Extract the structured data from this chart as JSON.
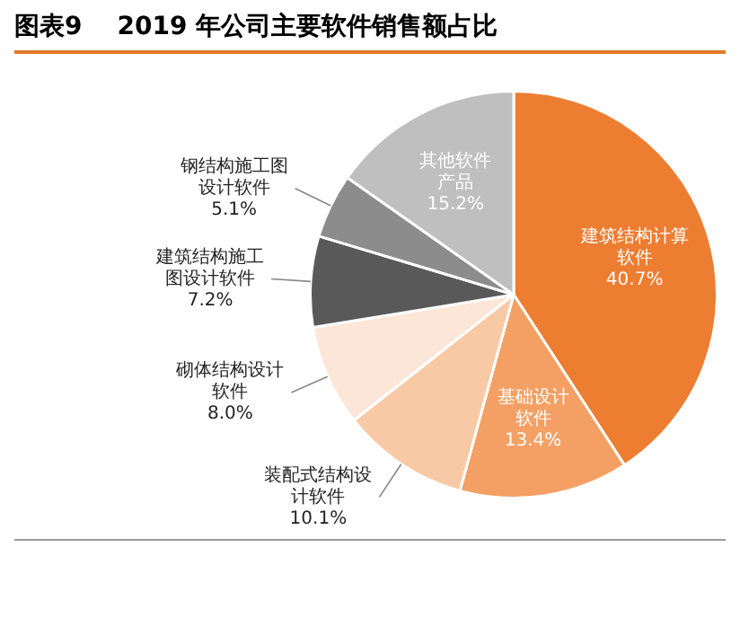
{
  "chart_data": {
    "type": "pie",
    "title": "图表9    2019 年公司主要软件销售额占比",
    "categories": [
      "建筑结构计算软件",
      "基础设计软件",
      "装配式结构设计软件",
      "砌体结构设计软件",
      "建筑结构施工图设计软件",
      "钢结构施工图设计软件",
      "其他软件产品"
    ],
    "values": [
      40.7,
      13.4,
      10.1,
      8.0,
      7.2,
      5.1,
      15.2
    ],
    "value_labels": [
      "40.7%",
      "13.4%",
      "10.1%",
      "8.0%",
      "7.2%",
      "5.1%",
      "15.2%"
    ],
    "colors": [
      "#ed7d31",
      "#f4a064",
      "#f8c9a5",
      "#fce6d8",
      "#595959",
      "#8c8c8c",
      "#bfbfbf"
    ],
    "legend": false
  }
}
